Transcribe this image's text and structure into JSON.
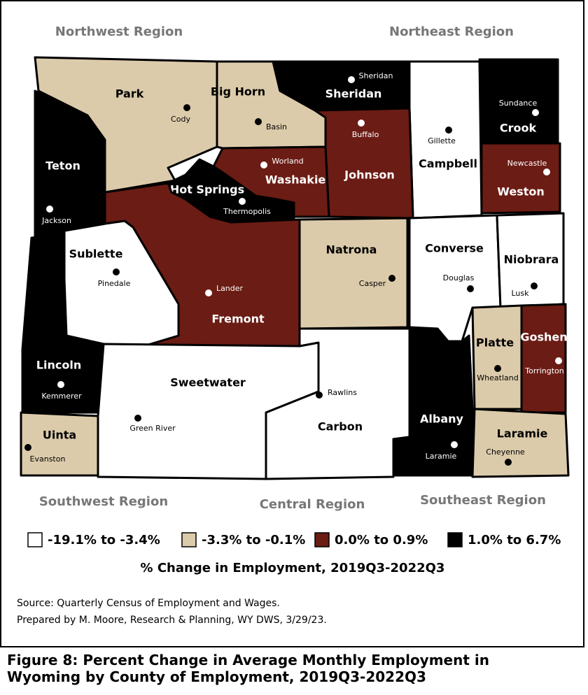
{
  "regions": [
    "Northwest Region",
    "Northeast Region",
    "Southwest Region",
    "Central Region",
    "Southeast Region"
  ],
  "counties": [
    {
      "name": "Park",
      "city": "Cody",
      "color": "#dccbab"
    },
    {
      "name": "Big Horn",
      "city": "Basin",
      "color": "#dccbab"
    },
    {
      "name": "Sheridan",
      "city": "Sheridan",
      "color": "#000000"
    },
    {
      "name": "Campbell",
      "city": "Gillette",
      "color": "#ffffff"
    },
    {
      "name": "Crook",
      "city": "Sundance",
      "color": "#000000"
    },
    {
      "name": "Weston",
      "city": "Newcastle",
      "color": "#6b1c14"
    },
    {
      "name": "Johnson",
      "city": "Buffalo",
      "color": "#6b1c14"
    },
    {
      "name": "Washakie",
      "city": "Worland",
      "color": "#6b1c14"
    },
    {
      "name": "Hot Springs",
      "city": "Thermopolis",
      "color": "#000000"
    },
    {
      "name": "Fremont",
      "city": "Lander",
      "color": "#6b1c14"
    },
    {
      "name": "Sublette",
      "city": "Pinedale",
      "color": "#ffffff"
    },
    {
      "name": "Teton",
      "city": "Jackson",
      "color": "#000000"
    },
    {
      "name": "Lincoln",
      "city": "Kemmerer",
      "color": "#000000"
    },
    {
      "name": "Uinta",
      "city": "Evanston",
      "color": "#dccbab"
    },
    {
      "name": "Sweetwater",
      "city": "Green River",
      "color": "#ffffff"
    },
    {
      "name": "Carbon",
      "city": "Rawlins",
      "color": "#ffffff"
    },
    {
      "name": "Natrona",
      "city": "Casper",
      "color": "#dccbab"
    },
    {
      "name": "Converse",
      "city": "Douglas",
      "color": "#ffffff"
    },
    {
      "name": "Niobrara",
      "city": "Lusk",
      "color": "#ffffff"
    },
    {
      "name": "Platte",
      "city": "Wheatland",
      "color": "#dccbab"
    },
    {
      "name": "Goshen",
      "city": "Torrington",
      "color": "#6b1c14"
    },
    {
      "name": "Albany",
      "city": "Laramie",
      "color": "#000000"
    },
    {
      "name": "Laramie",
      "city": "Cheyenne",
      "color": "#dccbab"
    }
  ],
  "legend": {
    "items": [
      {
        "label": "-19.1% to -3.4%",
        "color": "#ffffff"
      },
      {
        "label": "-3.3% to -0.1%",
        "color": "#dccbab"
      },
      {
        "label": "0.0% to 0.9%",
        "color": "#6b1c14"
      },
      {
        "label": "1.0% to 6.7%",
        "color": "#000000"
      }
    ],
    "title": "% Change in Employment, 2019Q3-2022Q3"
  },
  "source": [
    "Source: Quarterly Census of Employment and Wages.",
    "Prepared by M. Moore, Research & Planning, WY DWS, 3/29/23."
  ],
  "caption": "Figure 8: Percent Change in Average Monthly Employment in Wyoming by County of Employment, 2019Q3-2022Q3"
}
